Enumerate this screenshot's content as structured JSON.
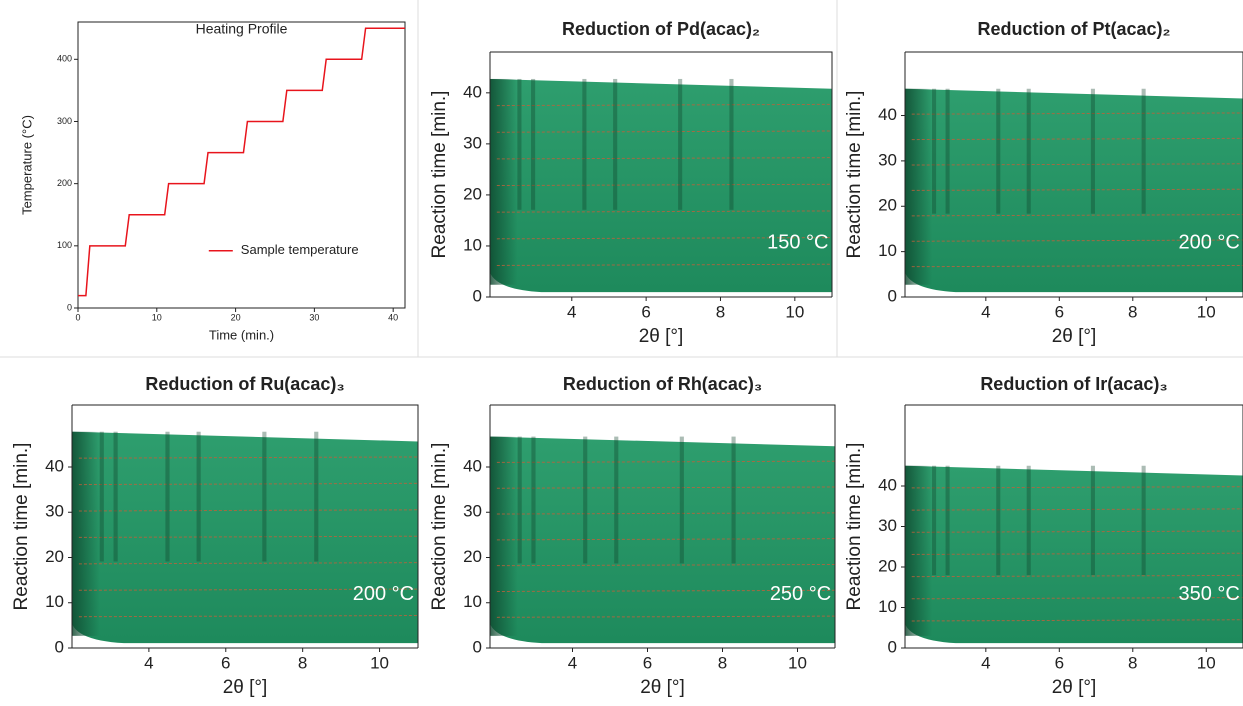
{
  "chart_data": [
    {
      "type": "line",
      "title": "Heating Profile",
      "xlabel": "Time (min.)",
      "ylabel": "Temperature (°C)",
      "x": [
        0,
        1,
        1.5,
        6,
        6.5,
        11,
        11.5,
        16,
        16.5,
        21,
        21.5,
        26,
        26.5,
        31,
        31.5,
        36,
        36.5,
        41.5
      ],
      "series": [
        {
          "name": "Sample temperature",
          "color": "#e8141c",
          "values": [
            20,
            20,
            100,
            100,
            150,
            150,
            200,
            200,
            250,
            250,
            300,
            300,
            350,
            350,
            400,
            400,
            450,
            450
          ]
        }
      ],
      "xlim": [
        0,
        41.5
      ],
      "ylim": [
        0,
        460
      ],
      "xticks": [
        0,
        10,
        20,
        30,
        40
      ],
      "yticks": [
        0,
        100,
        200,
        300,
        400
      ]
    },
    {
      "type": "surface",
      "title": "Reduction of Pd(acac)₂",
      "xlabel": "2θ [°]",
      "ylabel": "Reaction time [min.]",
      "annotation": "150 °C",
      "xlim": [
        1.8,
        11
      ],
      "ylim": [
        0,
        48
      ],
      "xticks": [
        4,
        6,
        8,
        10
      ],
      "yticks": [
        0,
        10,
        20,
        30,
        40
      ]
    },
    {
      "type": "surface",
      "title": "Reduction of Pt(acac)₂",
      "xlabel": "2θ [°]",
      "ylabel": "Reaction time [min.]",
      "annotation": "200 °C",
      "xlim": [
        1.8,
        11
      ],
      "ylim": [
        0,
        54
      ],
      "xticks": [
        4,
        6,
        8,
        10
      ],
      "yticks": [
        0,
        10,
        20,
        30,
        40
      ]
    },
    {
      "type": "surface",
      "title": "Reduction of Ru(acac)₃",
      "xlabel": "2θ [°]",
      "ylabel": "Reaction time [min.]",
      "annotation": "200 °C",
      "xlim": [
        2,
        11
      ],
      "ylim": [
        0,
        53.7
      ],
      "xticks": [
        4,
        6,
        8,
        10
      ],
      "yticks": [
        0,
        10,
        20,
        30,
        40
      ]
    },
    {
      "type": "surface",
      "title": "Reduction of Rh(acac)₃",
      "xlabel": "2θ [°]",
      "ylabel": "Reaction time [min.]",
      "annotation": "250 °C",
      "xlim": [
        1.8,
        11
      ],
      "ylim": [
        0,
        53.7
      ],
      "xticks": [
        4,
        6,
        8,
        10
      ],
      "yticks": [
        0,
        10,
        20,
        30,
        40
      ]
    },
    {
      "type": "surface",
      "title": "Reduction of Ir(acac)₃",
      "xlabel": "2θ [°]",
      "ylabel": "Reaction time [min.]",
      "annotation": "350 °C",
      "xlim": [
        1.8,
        11
      ],
      "ylim": [
        0,
        60
      ],
      "xticks": [
        4,
        6,
        8,
        10
      ],
      "yticks": [
        0,
        10,
        20,
        30,
        40
      ]
    }
  ]
}
